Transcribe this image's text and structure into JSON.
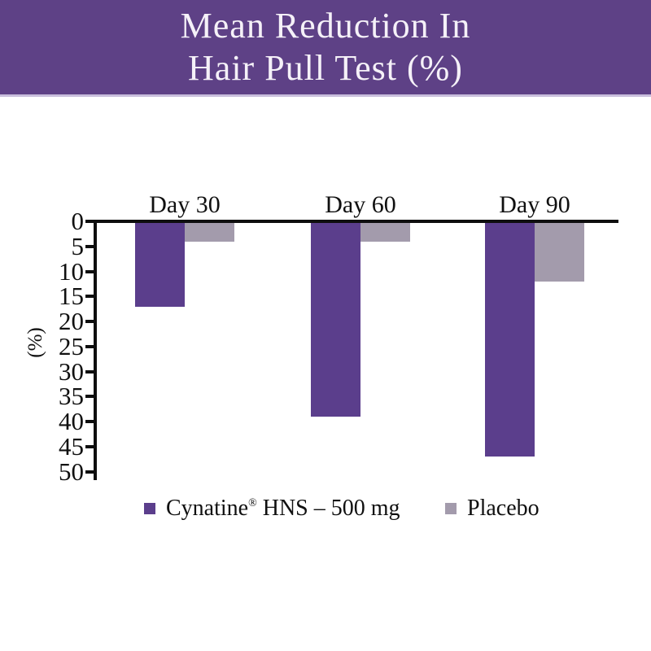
{
  "header": {
    "title_line1": "Mean Reduction In",
    "title_line2": "Hair Pull Test (%)"
  },
  "colors": {
    "banner_bg": "#5E4186",
    "banner_border": "#C9BEDC",
    "title_text": "#F5F1F8",
    "cynatine_bar": "#5B3E8C",
    "placebo_bar": "#A39BAC",
    "axis": "#0E0E0E",
    "page_bg": "#FFFFFF"
  },
  "chart_data": {
    "type": "bar",
    "title": "Mean Reduction In Hair Pull Test (%)",
    "orientation": "vertical-downward",
    "categories": [
      "Day 30",
      "Day 60",
      "Day 90"
    ],
    "series": [
      {
        "name": "Cynatine® HNS – 500 mg",
        "values": [
          17,
          39,
          47
        ],
        "color": "#5B3E8C"
      },
      {
        "name": "Placebo",
        "values": [
          4,
          4,
          12
        ],
        "color": "#A39BAC"
      }
    ],
    "xlabel": "",
    "ylabel": "(%)",
    "y_ticks": [
      0,
      5,
      10,
      15,
      20,
      25,
      30,
      35,
      40,
      45,
      50
    ],
    "ylim": [
      0,
      50
    ],
    "axis_direction": "values increase downward",
    "grid": false,
    "legend_position": "bottom"
  },
  "legend": {
    "cynatine": {
      "brand": "Cynatine",
      "reg": "®",
      "rest": " HNS – 500 mg"
    },
    "placebo_label": "Placebo"
  }
}
